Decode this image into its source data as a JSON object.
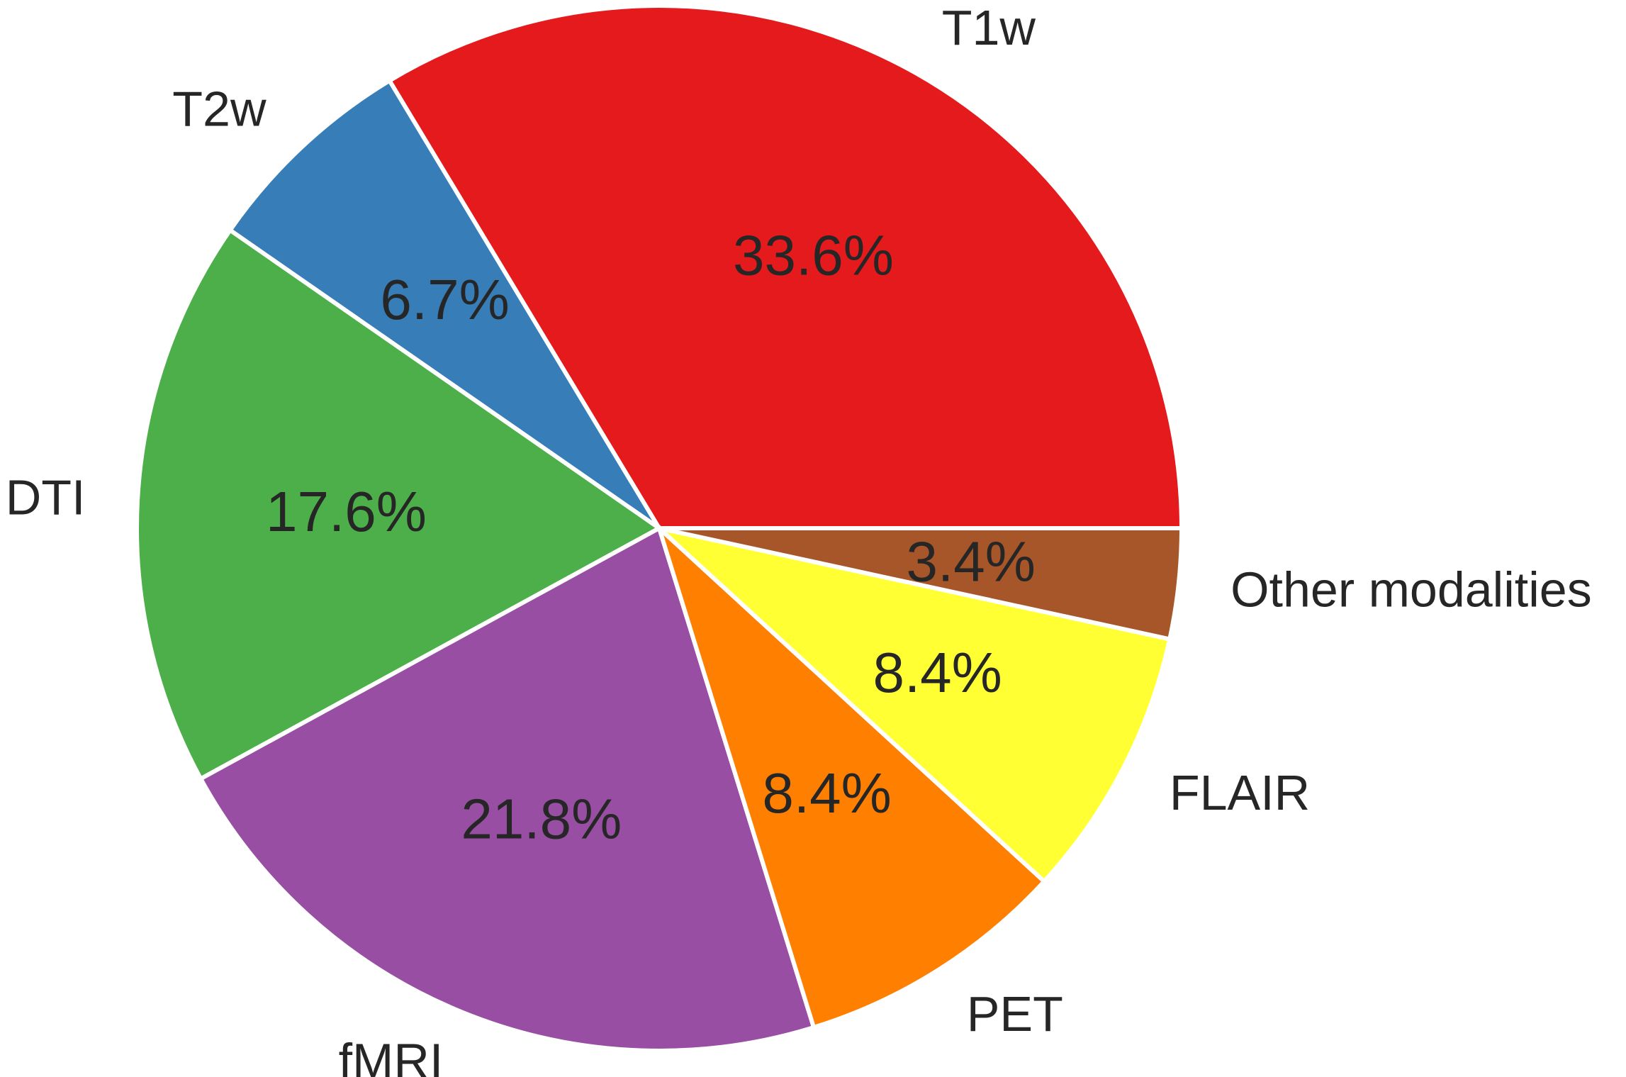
{
  "chart_data": {
    "type": "pie",
    "title": "",
    "start_angle_deg": 0,
    "direction": "counterclockwise",
    "legend": "none",
    "slices": [
      {
        "label": "T1w",
        "value": 33.6,
        "pct_label": "33.6%",
        "color": "#e41a1c"
      },
      {
        "label": "T2w",
        "value": 6.7,
        "pct_label": "6.7%",
        "color": "#377eb8"
      },
      {
        "label": "DTI",
        "value": 17.6,
        "pct_label": "17.6%",
        "color": "#4daf4a"
      },
      {
        "label": "fMRI",
        "value": 21.8,
        "pct_label": "21.8%",
        "color": "#984ea3"
      },
      {
        "label": "PET",
        "value": 8.4,
        "pct_label": "8.4%",
        "color": "#ff7f00"
      },
      {
        "label": "FLAIR",
        "value": 8.4,
        "pct_label": "8.4%",
        "color": "#ffff33"
      },
      {
        "label": "Other modalities",
        "value": 3.4,
        "pct_label": "3.4%",
        "color": "#a65628"
      }
    ]
  }
}
